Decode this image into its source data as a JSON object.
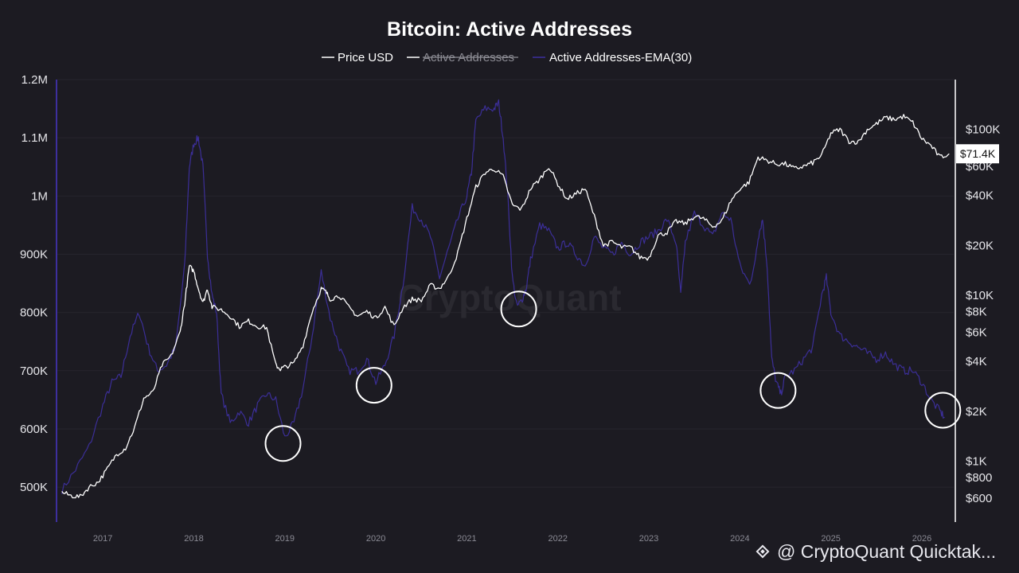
{
  "chart_data": {
    "type": "line",
    "title": "Bitcoin: Active Addresses",
    "legend": [
      {
        "name": "Price USD",
        "color": "#ffffff",
        "hidden": false
      },
      {
        "name": "Active Addresses",
        "color": "#ffffff",
        "hidden": true
      },
      {
        "name": "Active Addresses-EMA(30)",
        "color": "#3d2f9e",
        "hidden": false
      }
    ],
    "legend_position": "top-center",
    "y_left": {
      "ticks": [
        500000,
        600000,
        700000,
        800000,
        900000,
        1000000,
        1100000,
        1200000
      ],
      "tick_labels": [
        "500K",
        "600K",
        "700K",
        "800K",
        "900K",
        "1M",
        "1.1M",
        "1.2M"
      ],
      "range": [
        440000,
        1200000
      ]
    },
    "y_right": {
      "scale": "log",
      "ticks": [
        600,
        800,
        1000,
        2000,
        4000,
        6000,
        8000,
        10000,
        20000,
        40000,
        60000,
        100000
      ],
      "tick_labels": [
        "$600",
        "$800",
        "$1K",
        "$2K",
        "$4K",
        "$6K",
        "$8K",
        "$10K",
        "$20K",
        "$40K",
        "$60K",
        "$100K"
      ],
      "range": [
        430,
        200000
      ]
    },
    "x_axis": {
      "ticks": [
        2017,
        2018,
        2019,
        2020,
        2021,
        2022,
        2023,
        2024,
        2025,
        2026
      ],
      "tick_labels": [
        "2017",
        "2018",
        "2019",
        "2020",
        "2021",
        "2022",
        "2023",
        "2024",
        "2025",
        "2026"
      ],
      "range": [
        2016.5,
        2026.35
      ]
    },
    "series": [
      {
        "name": "Active Addresses-EMA(30)",
        "axis": "left",
        "color": "#3d2f9e",
        "x": [
          2016.55,
          2016.7,
          2016.85,
          2017.0,
          2017.1,
          2017.2,
          2017.3,
          2017.4,
          2017.5,
          2017.6,
          2017.7,
          2017.8,
          2017.9,
          2017.95,
          2018.0,
          2018.05,
          2018.1,
          2018.15,
          2018.2,
          2018.25,
          2018.3,
          2018.4,
          2018.5,
          2018.6,
          2018.7,
          2018.8,
          2018.9,
          2019.0,
          2019.1,
          2019.2,
          2019.3,
          2019.4,
          2019.5,
          2019.6,
          2019.7,
          2019.8,
          2019.9,
          2020.0,
          2020.1,
          2020.2,
          2020.3,
          2020.4,
          2020.5,
          2020.6,
          2020.7,
          2020.8,
          2020.9,
          2021.0,
          2021.05,
          2021.1,
          2021.2,
          2021.3,
          2021.35,
          2021.4,
          2021.45,
          2021.5,
          2021.55,
          2021.6,
          2021.65,
          2021.7,
          2021.8,
          2021.9,
          2022.0,
          2022.1,
          2022.2,
          2022.3,
          2022.4,
          2022.5,
          2022.6,
          2022.7,
          2022.8,
          2022.9,
          2023.0,
          2023.1,
          2023.2,
          2023.3,
          2023.35,
          2023.4,
          2023.5,
          2023.6,
          2023.7,
          2023.8,
          2023.9,
          2024.0,
          2024.1,
          2024.15,
          2024.2,
          2024.25,
          2024.3,
          2024.35,
          2024.4,
          2024.45,
          2024.5,
          2024.6,
          2024.7,
          2024.8,
          2024.9,
          2024.95,
          2025.0,
          2025.1,
          2025.2,
          2025.3,
          2025.4,
          2025.5,
          2025.6,
          2025.7,
          2025.8,
          2025.9,
          2026.0,
          2026.1,
          2026.2,
          2026.25
        ],
        "values": [
          495000,
          530000,
          570000,
          640000,
          680000,
          690000,
          760000,
          800000,
          740000,
          700000,
          710000,
          740000,
          880000,
          1050000,
          1090000,
          1100000,
          1050000,
          900000,
          830000,
          800000,
          660000,
          610000,
          630000,
          610000,
          640000,
          660000,
          650000,
          585000,
          610000,
          670000,
          760000,
          870000,
          790000,
          740000,
          700000,
          700000,
          720000,
          680000,
          710000,
          760000,
          850000,
          980000,
          960000,
          930000,
          860000,
          910000,
          960000,
          1000000,
          1040000,
          1130000,
          1150000,
          1150000,
          1160000,
          1100000,
          1000000,
          860000,
          810000,
          820000,
          840000,
          890000,
          950000,
          940000,
          910000,
          920000,
          900000,
          880000,
          930000,
          910000,
          900000,
          920000,
          900000,
          920000,
          930000,
          940000,
          960000,
          920000,
          830000,
          920000,
          970000,
          950000,
          930000,
          970000,
          960000,
          880000,
          850000,
          870000,
          930000,
          960000,
          880000,
          720000,
          680000,
          660000,
          690000,
          700000,
          720000,
          740000,
          830000,
          860000,
          800000,
          760000,
          750000,
          740000,
          730000,
          720000,
          730000,
          710000,
          700000,
          700000,
          680000,
          650000,
          630000,
          620000
        ]
      },
      {
        "name": "Price USD",
        "axis": "right",
        "color": "#ffffff",
        "x": [
          2016.55,
          2016.65,
          2016.75,
          2016.85,
          2016.95,
          2017.05,
          2017.15,
          2017.25,
          2017.35,
          2017.45,
          2017.55,
          2017.65,
          2017.75,
          2017.85,
          2017.9,
          2017.95,
          2018.0,
          2018.05,
          2018.1,
          2018.15,
          2018.2,
          2018.3,
          2018.4,
          2018.5,
          2018.6,
          2018.7,
          2018.8,
          2018.9,
          2018.95,
          2019.0,
          2019.1,
          2019.2,
          2019.3,
          2019.4,
          2019.45,
          2019.5,
          2019.6,
          2019.7,
          2019.8,
          2019.9,
          2020.0,
          2020.1,
          2020.2,
          2020.3,
          2020.4,
          2020.5,
          2020.6,
          2020.7,
          2020.8,
          2020.9,
          2021.0,
          2021.1,
          2021.2,
          2021.3,
          2021.4,
          2021.5,
          2021.6,
          2021.7,
          2021.8,
          2021.9,
          2022.0,
          2022.1,
          2022.2,
          2022.3,
          2022.4,
          2022.5,
          2022.6,
          2022.7,
          2022.8,
          2022.9,
          2023.0,
          2023.1,
          2023.2,
          2023.3,
          2023.4,
          2023.5,
          2023.6,
          2023.7,
          2023.8,
          2023.9,
          2024.0,
          2024.1,
          2024.2,
          2024.3,
          2024.4,
          2024.5,
          2024.6,
          2024.7,
          2024.8,
          2024.9,
          2025.0,
          2025.1,
          2025.2,
          2025.3,
          2025.4,
          2025.5,
          2025.6,
          2025.7,
          2025.8,
          2025.9,
          2026.0,
          2026.1,
          2026.2,
          2026.3
        ],
        "values": [
          650,
          620,
          610,
          700,
          750,
          900,
          1100,
          1200,
          1600,
          2400,
          2600,
          3800,
          4300,
          6000,
          9000,
          15000,
          14000,
          11000,
          9000,
          11000,
          8500,
          8200,
          7500,
          6500,
          7000,
          6500,
          6400,
          3800,
          3600,
          3700,
          3900,
          5000,
          8000,
          11000,
          10500,
          9500,
          10000,
          8500,
          7500,
          8000,
          7300,
          8500,
          6500,
          8500,
          9500,
          9300,
          11500,
          11000,
          13000,
          18000,
          29000,
          45000,
          55000,
          58000,
          52000,
          35000,
          33000,
          44000,
          50000,
          60000,
          47000,
          38000,
          41000,
          44000,
          30000,
          20000,
          21000,
          19500,
          19500,
          17000,
          16800,
          23000,
          24000,
          28000,
          27000,
          30000,
          29000,
          26000,
          28000,
          37000,
          44000,
          48000,
          68000,
          65000,
          62000,
          62000,
          58000,
          60000,
          63000,
          70000,
          95000,
          100000,
          85000,
          84000,
          100000,
          108000,
          118000,
          115000,
          120000,
          110000,
          88000,
          80000,
          68000,
          71400
        ]
      }
    ],
    "current_price_label": "$71.4K",
    "highlight_circles": [
      {
        "x": 2018.98,
        "y": 575000,
        "label": ""
      },
      {
        "x": 2019.98,
        "y": 675000,
        "label": ""
      },
      {
        "x": 2021.57,
        "y": 806000,
        "label": ""
      },
      {
        "x": 2024.42,
        "y": 666000,
        "label": ""
      },
      {
        "x": 2026.23,
        "y": 632000,
        "label": ""
      }
    ],
    "grid": true
  },
  "watermark": "CryptoQuant",
  "footer": "@ CryptoQuant Quicktak..."
}
